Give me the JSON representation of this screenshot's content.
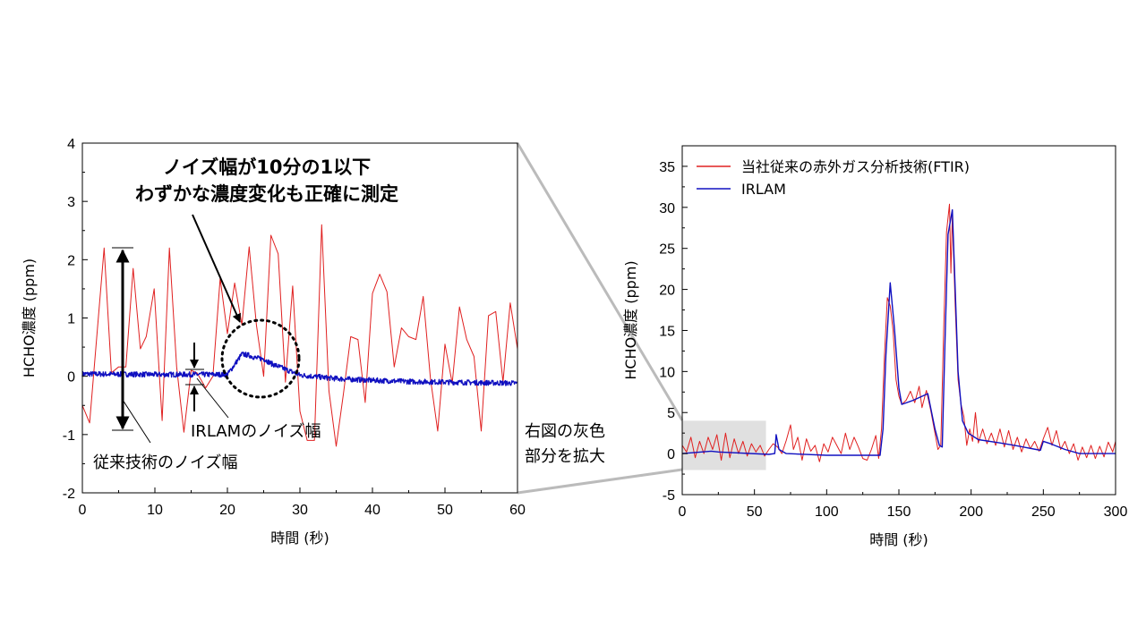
{
  "chart_data": [
    {
      "type": "line",
      "xlabel": "時間 (秒)",
      "ylabel": "HCHO濃度 (ppm)",
      "xlim": [
        0,
        60
      ],
      "ylim": [
        -2,
        4
      ],
      "xticks": [
        0,
        10,
        20,
        30,
        40,
        50,
        60
      ],
      "yticks": [
        -2,
        -1,
        0,
        1,
        2,
        3,
        4
      ],
      "grid": false,
      "annotations": {
        "headline_1": "ノイズ幅が10分の1以下",
        "headline_2": "わずかな濃度変化も正確に測定",
        "conventional_noise": "従来技術のノイズ幅",
        "irlam_noise": "IRLAMのノイズ幅",
        "zoom_note_1": "右図の灰色",
        "zoom_note_2": "部分を拡大"
      },
      "series": [
        {
          "color": "#e02020",
          "x": [
            0,
            1,
            3,
            4,
            5,
            6,
            7,
            8,
            8.8,
            9.9,
            11,
            12,
            13,
            14,
            15,
            15.8,
            17,
            18,
            19,
            20,
            21,
            22,
            23,
            24,
            25,
            26,
            27,
            28,
            29,
            30,
            31,
            32,
            33,
            34,
            35,
            36,
            37,
            38,
            39,
            40,
            41,
            42,
            43,
            44,
            45,
            46,
            47,
            48,
            49,
            50,
            51,
            52,
            53,
            54,
            55,
            56,
            57,
            58,
            59,
            60
          ],
          "y": [
            -0.5,
            -0.8,
            2.2,
            0.06,
            0.16,
            0.16,
            1.85,
            0.47,
            0.68,
            1.5,
            -0.76,
            2.2,
            0.16,
            -0.96,
            0.1,
            0.06,
            -0.2,
            0.0,
            1.68,
            0.73,
            1.6,
            0.88,
            2.22,
            0.88,
            0.0,
            2.42,
            2.1,
            -0.1,
            1.55,
            -0.6,
            -1.1,
            -1.1,
            2.6,
            -0.25,
            -1.2,
            -0.3,
            0.68,
            0.63,
            -0.45,
            1.42,
            1.75,
            1.45,
            0.16,
            0.83,
            0.68,
            0.63,
            1.37,
            -0.04,
            -0.94,
            0.55,
            -0.12,
            1.19,
            0.63,
            0.34,
            -0.94,
            1.04,
            1.11,
            -0.1,
            1.26,
            0.47
          ]
        },
        {
          "color": "#1010c0",
          "x": [
            0,
            10,
            20,
            21,
            22,
            23,
            24,
            25,
            26,
            28,
            30,
            35,
            40,
            45,
            50,
            55,
            60
          ],
          "y": [
            0.04,
            0.03,
            0.03,
            0.2,
            0.38,
            0.36,
            0.31,
            0.3,
            0.22,
            0.12,
            0.02,
            -0.04,
            -0.07,
            -0.09,
            -0.1,
            -0.11,
            -0.12
          ]
        }
      ]
    },
    {
      "type": "line",
      "xlabel": "時間 (秒)",
      "ylabel": "HCHO濃度 (ppm)",
      "xlim": [
        0,
        300
      ],
      "ylim": [
        -5,
        37.5
      ],
      "xticks": [
        0,
        50,
        100,
        150,
        200,
        250,
        300
      ],
      "yticks": [
        -5,
        0,
        5,
        10,
        15,
        20,
        25,
        30,
        35
      ],
      "grid": false,
      "legend_placement": "top-left",
      "highlight_region": {
        "x": [
          0,
          58
        ],
        "y": [
          -2,
          4
        ],
        "color": "#e0e0e0"
      },
      "series": [
        {
          "name": "当社従来の赤外ガス分析技術(FTIR)",
          "color": "#e02020",
          "x": [
            0,
            3,
            6,
            9,
            12,
            15,
            18,
            21,
            24,
            27,
            30,
            33,
            36,
            39,
            42,
            45,
            48,
            51,
            54,
            57,
            60,
            63,
            66,
            69,
            72,
            75,
            77,
            80,
            83,
            86,
            89,
            92,
            95,
            98,
            101,
            104,
            107,
            110,
            113,
            116,
            119,
            122,
            125,
            128,
            131,
            134,
            136,
            138,
            140,
            142,
            144,
            146,
            148,
            150,
            152,
            155,
            158,
            161,
            164,
            166,
            169,
            172,
            175,
            177,
            179,
            181,
            183,
            185,
            186,
            187,
            189,
            191,
            193,
            195,
            197,
            199,
            201,
            203,
            205,
            208,
            211,
            214,
            217,
            220,
            223,
            226,
            229,
            232,
            235,
            238,
            241,
            244,
            247,
            250,
            253,
            256,
            259,
            262,
            265,
            268,
            271,
            274,
            277,
            280,
            283,
            286,
            289,
            292,
            295,
            298,
            300
          ],
          "y": [
            1,
            0.2,
            2,
            -0.5,
            1.5,
            0,
            2,
            0.5,
            2.3,
            -0.8,
            2.5,
            -0.5,
            1.8,
            0,
            1.5,
            -0.3,
            1.2,
            0.2,
            1,
            -0.3,
            0.5,
            1.2,
            0.8,
            0,
            1.6,
            3.5,
            0.5,
            2,
            -0.8,
            1.8,
            0.3,
            1,
            -1,
            1.2,
            0.2,
            2,
            1,
            0,
            2.5,
            0.5,
            2,
            0.8,
            -0.6,
            -0.8,
            0.5,
            2.2,
            -0.6,
            3,
            12,
            19,
            18,
            15,
            9,
            7,
            6,
            6.5,
            7.6,
            6.2,
            8.2,
            5.6,
            7.7,
            5.3,
            2.5,
            0.5,
            1,
            15,
            27,
            30.4,
            22,
            29,
            18,
            9,
            6,
            4.5,
            1,
            3,
            1.5,
            5,
            1.3,
            3,
            1.2,
            2.5,
            1,
            3,
            0.8,
            2.8,
            0.5,
            2,
            0.2,
            1.8,
            0.6,
            1.5,
            0.3,
            1.8,
            3.2,
            1,
            2.8,
            0.5,
            1.5,
            0,
            1.2,
            -0.8,
            0.8,
            -0.5,
            1,
            -0.6,
            0.9,
            -0.4,
            1.4,
            0.2,
            1.5
          ]
        },
        {
          "name": "IRLAM",
          "color": "#1010c0",
          "x": [
            0,
            20,
            25,
            60,
            64,
            65,
            67,
            72,
            100,
            137,
            139,
            141,
            144,
            147,
            150,
            152,
            160,
            170,
            175,
            178,
            180,
            182,
            184,
            187,
            189,
            191,
            194,
            198,
            205,
            220,
            230,
            245,
            248,
            250,
            255,
            265,
            275,
            300
          ],
          "y": [
            0,
            0.3,
            0.2,
            -0.1,
            0,
            2.3,
            0.5,
            0,
            -0.2,
            -0.2,
            3,
            12,
            20.8,
            15,
            8,
            6,
            6.5,
            7.3,
            3,
            1,
            0.8,
            14,
            26.7,
            29.7,
            20,
            10,
            4,
            2.5,
            1.7,
            1.3,
            1,
            0.5,
            0.4,
            1.5,
            1.2,
            0.5,
            0,
            0
          ]
        }
      ]
    }
  ]
}
